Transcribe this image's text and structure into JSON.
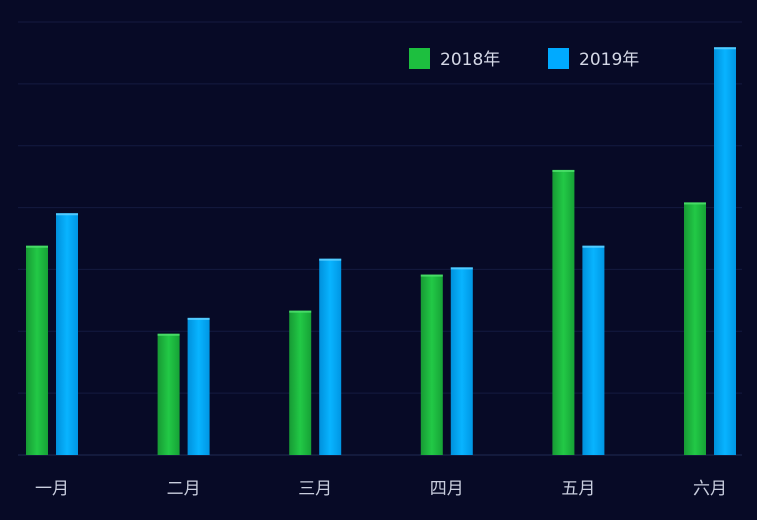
{
  "chart_data": {
    "type": "bar",
    "categories": [
      "一月",
      "二月",
      "三月",
      "四月",
      "五月",
      "六月"
    ],
    "series": [
      {
        "name": "2018年",
        "values": [
          29,
          16.8,
          20,
          25,
          39.5,
          35
        ],
        "color": "#1dbf3f"
      },
      {
        "name": "2019年",
        "values": [
          33.5,
          19,
          27.2,
          26,
          29,
          56.5
        ],
        "color": "#00aaff"
      }
    ],
    "ylim": [
      0,
      60
    ],
    "grid": true,
    "legend": "top-right"
  }
}
